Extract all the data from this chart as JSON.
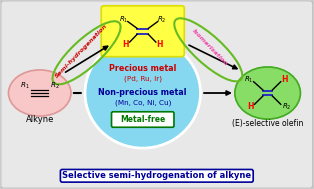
{
  "bg_color": "#cccccc",
  "title": "Selective semi-hydrogenation of alkyne",
  "title_color": "#000099",
  "title_fontsize": 6.0,
  "alkyne_label": "Alkyne",
  "eolefin_label": "(E)-selective olefin",
  "precious_metal": "Precious metal",
  "precious_sub": "(Pd, Ru, Ir)",
  "nonprecious_metal": "Non-precious metal",
  "nonprecious_sub": "(Mn, Co, Ni, Cu)",
  "metalfree": "Metal-free",
  "semi_hydro": "Semi-hydrogenation",
  "isomerisation": "Isomerisation",
  "cyan_circle_color": "#80d8f0",
  "alkyne_ellipse_color": "#f8c8c8",
  "eolefin_ellipse_color": "#88dd66",
  "yellow_box_color": "#ffff44",
  "semih_ellipse_color": "#66bb22",
  "isom_ellipse_color": "#66bb22",
  "precious_color": "#cc0000",
  "nonprecious_color": "#000099",
  "metalfree_color": "#007700",
  "semi_color": "#cc0000",
  "isom_color": "#ee44aa"
}
